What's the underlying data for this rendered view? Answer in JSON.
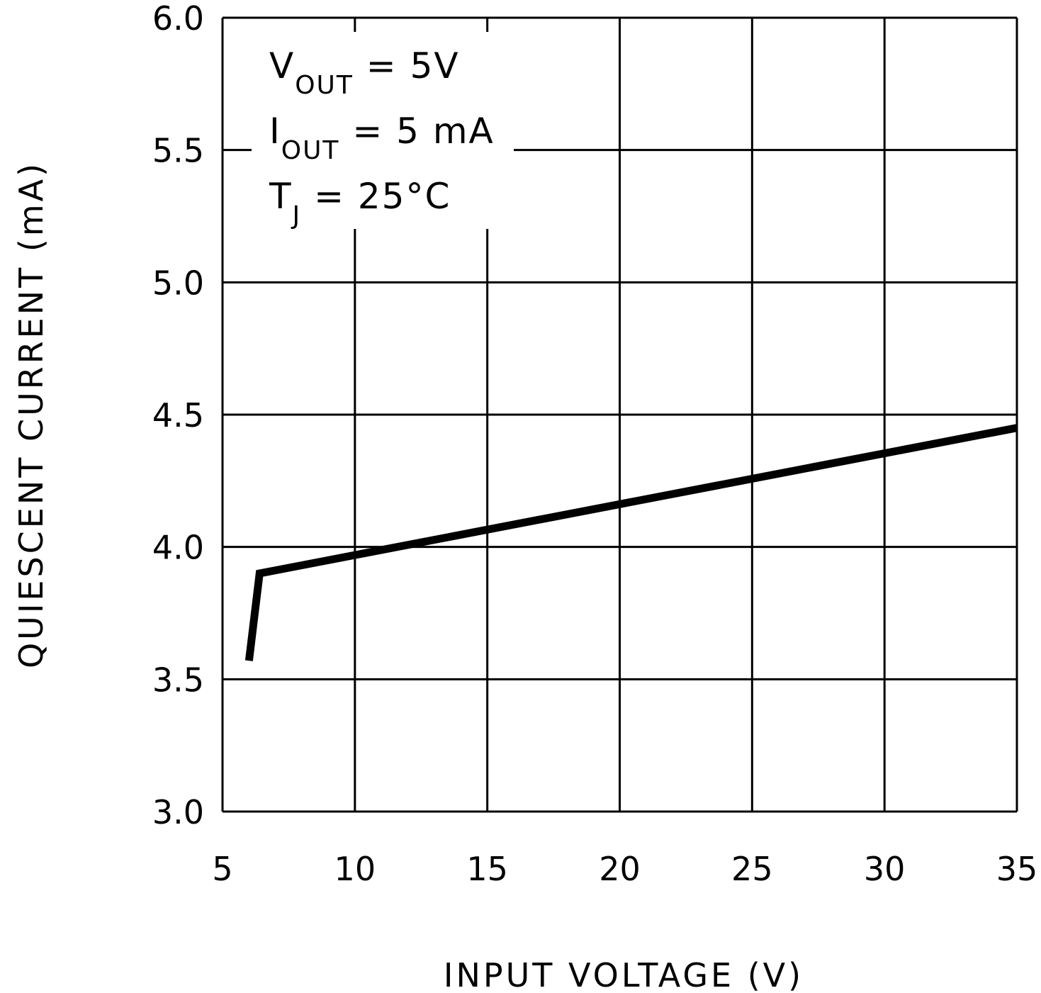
{
  "chart_data": {
    "type": "line",
    "title": "",
    "xlabel": "INPUT VOLTAGE (V)",
    "ylabel": "QUIESCENT CURRENT (mA)",
    "xlim": [
      5,
      35
    ],
    "ylim": [
      3.0,
      6.0
    ],
    "xticks": [
      5,
      10,
      15,
      20,
      25,
      30,
      35
    ],
    "yticks": [
      3.0,
      3.5,
      4.0,
      4.5,
      5.0,
      5.5,
      6.0
    ],
    "xtick_labels": [
      "5",
      "10",
      "15",
      "20",
      "25",
      "30",
      "35"
    ],
    "ytick_labels": [
      "3.0",
      "3.5",
      "4.0",
      "4.5",
      "5.0",
      "5.5",
      "6.0"
    ],
    "grid": true,
    "series": [
      {
        "x": [
          6.0,
          6.4,
          35
        ],
        "y": [
          3.57,
          3.9,
          4.45
        ],
        "color": "#000000"
      }
    ],
    "annotations": [
      {
        "main": "V",
        "sub": "OUT",
        "rest": " = 5V"
      },
      {
        "main": "I",
        "sub": "OUT",
        "rest": " = 5 mA"
      },
      {
        "main": "T",
        "sub": "J",
        "rest": " = 25°C"
      }
    ]
  }
}
